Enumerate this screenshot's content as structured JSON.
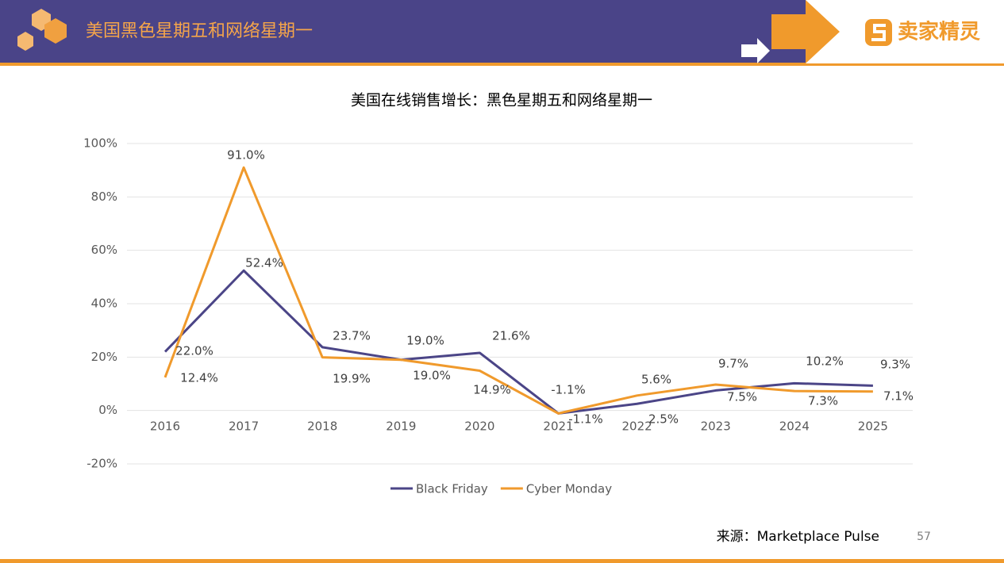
{
  "header": {
    "title": "美国黑色星期五和网络星期一",
    "logo": "卖家精灵"
  },
  "page_number": "57",
  "chart_data": {
    "type": "line",
    "title": "美国在线销售增长：黑色星期五和网络星期一",
    "source": "来源：Marketplace Pulse",
    "categories": [
      "2016",
      "2017",
      "2018",
      "2019",
      "2020",
      "2021",
      "2022",
      "2023",
      "2024",
      "2025"
    ],
    "series": [
      {
        "name": "Black Friday",
        "color": "#4b4587",
        "values": [
          22.0,
          52.4,
          23.7,
          19.0,
          21.6,
          -1.1,
          2.5,
          7.5,
          10.2,
          9.3
        ],
        "value_labels": [
          "22.0%",
          "52.4%",
          "23.7%",
          "19.0%",
          "21.6%",
          "-1.1%",
          "2.5%",
          "7.5%",
          "10.2%",
          "9.3%"
        ]
      },
      {
        "name": "Cyber Monday",
        "color": "#f09a2c",
        "values": [
          12.4,
          91.0,
          19.9,
          19.0,
          14.9,
          -1.1,
          5.6,
          9.7,
          7.3,
          7.1
        ],
        "value_labels": [
          "12.4%",
          "91.0%",
          "19.9%",
          "19.0%",
          "14.9%",
          "-1.1%",
          "5.6%",
          "9.7%",
          "7.3%",
          "7.1%"
        ]
      }
    ],
    "ylim": [
      -20,
      100
    ],
    "yticks": [
      {
        "value": -20,
        "label": "-20%"
      },
      {
        "value": 0,
        "label": "0%"
      },
      {
        "value": 20,
        "label": "20%"
      },
      {
        "value": 40,
        "label": "40%"
      },
      {
        "value": 60,
        "label": "60%"
      },
      {
        "value": 80,
        "label": "80%"
      },
      {
        "value": 100,
        "label": "100%"
      }
    ],
    "grid": true,
    "legend": "bottom"
  }
}
